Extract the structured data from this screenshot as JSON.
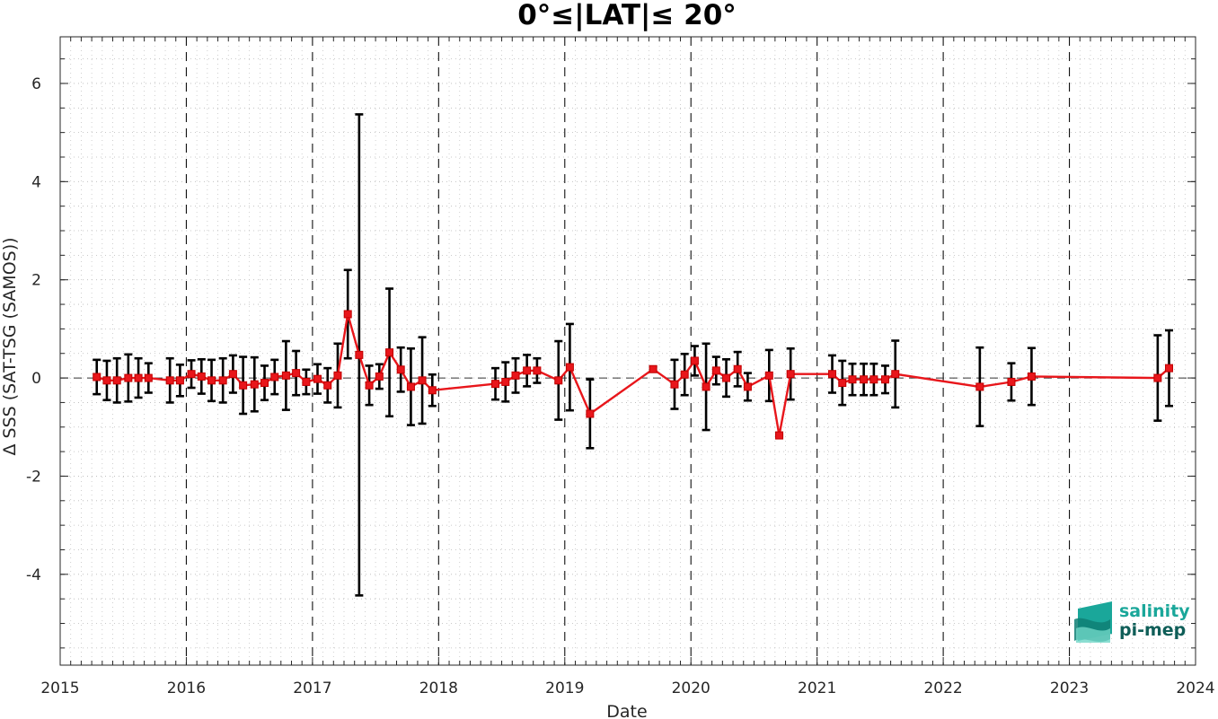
{
  "chart_data": {
    "type": "line",
    "title": "0°≤|LAT|≤ 20°",
    "xlabel": "Date",
    "ylabel": "Δ SSS (SAT-TSG (SAMOS))",
    "xlim": [
      2015,
      2024
    ],
    "ylim": [
      -5.85,
      6.95
    ],
    "x_ticks": [
      "2015",
      "2016",
      "2017",
      "2018",
      "2019",
      "2020",
      "2021",
      "2022",
      "2023",
      "2024"
    ],
    "y_ticks": [
      "-4",
      "-2",
      "0",
      "2",
      "4",
      "6"
    ],
    "grid": "dotted minor grid, dashed vertical lines at each year",
    "series": [
      {
        "color": "#e8161b",
        "marker": "square",
        "x": [
          2015.29,
          2015.37,
          2015.45,
          2015.54,
          2015.62,
          2015.7,
          2015.87,
          2015.95,
          2016.04,
          2016.12,
          2016.2,
          2016.29,
          2016.37,
          2016.45,
          2016.54,
          2016.62,
          2016.7,
          2016.79,
          2016.87,
          2016.95,
          2017.04,
          2017.12,
          2017.2,
          2017.28,
          2017.37,
          2017.45,
          2017.53,
          2017.61,
          2017.7,
          2017.78,
          2017.87,
          2017.95,
          2018.45,
          2018.53,
          2018.61,
          2018.7,
          2018.78,
          2018.95,
          2019.04,
          2019.2,
          2019.7,
          2019.87,
          2019.95,
          2020.03,
          2020.12,
          2020.2,
          2020.28,
          2020.37,
          2020.45,
          2020.62,
          2020.7,
          2020.79,
          2021.12,
          2021.2,
          2021.28,
          2021.37,
          2021.45,
          2021.54,
          2021.62,
          2022.29,
          2022.54,
          2022.7,
          2023.7,
          2023.79
        ],
        "values": [
          0.02,
          -0.05,
          -0.05,
          0.0,
          0.0,
          0.0,
          -0.05,
          -0.05,
          0.08,
          0.03,
          -0.05,
          -0.05,
          0.08,
          -0.15,
          -0.13,
          -0.1,
          0.02,
          0.05,
          0.1,
          -0.08,
          -0.02,
          -0.15,
          0.05,
          1.3,
          0.47,
          -0.15,
          0.03,
          0.52,
          0.17,
          -0.18,
          -0.05,
          -0.25,
          -0.12,
          -0.08,
          0.05,
          0.15,
          0.15,
          -0.05,
          0.22,
          -0.73,
          0.18,
          -0.13,
          0.07,
          0.35,
          -0.18,
          0.15,
          0.0,
          0.18,
          -0.18,
          0.05,
          -1.17,
          0.08,
          0.08,
          -0.1,
          -0.03,
          -0.03,
          -0.03,
          -0.03,
          0.08,
          -0.18,
          -0.08,
          0.03,
          0.0,
          0.2
        ],
        "error_bars": [
          0.35,
          0.4,
          0.45,
          0.48,
          0.4,
          0.3,
          0.45,
          0.32,
          0.28,
          0.35,
          0.42,
          0.45,
          0.38,
          0.58,
          0.55,
          0.35,
          0.35,
          0.7,
          0.45,
          0.25,
          0.3,
          0.35,
          0.65,
          0.9,
          4.9,
          0.4,
          0.25,
          1.3,
          0.45,
          0.78,
          0.88,
          0.32,
          0.32,
          0.4,
          0.35,
          0.32,
          0.25,
          0.8,
          0.88,
          0.7,
          0.05,
          0.5,
          0.42,
          0.3,
          0.88,
          0.28,
          0.38,
          0.35,
          0.28,
          0.52,
          0.02,
          0.52,
          0.38,
          0.45,
          0.32,
          0.32,
          0.32,
          0.28,
          0.68,
          0.8,
          0.38,
          0.58,
          0.87,
          0.77
        ]
      }
    ],
    "error_bar_color": "#000000",
    "logo": {
      "line1": "salinity",
      "line2": "pi-mep",
      "color1": "#1aa79a",
      "color2": "#0f5e58"
    }
  }
}
